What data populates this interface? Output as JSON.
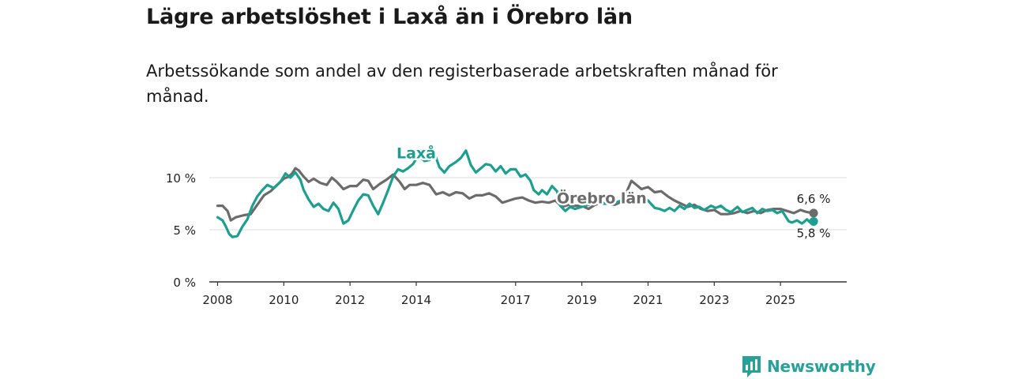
{
  "header": {
    "title": "Lägre arbetslöshet i Laxå än i Örebro län",
    "subtitle": "Arbetssökande som andel av den registerbaserade arbetskraften månad för månad."
  },
  "brand": {
    "name": "Newsworthy",
    "color": "#2aa198"
  },
  "chart_data": {
    "type": "line",
    "title": "Lägre arbetslöshet i Laxå än i Örebro län",
    "subtitle": "Arbetssökande som andel av den registerbaserade arbetskraften månad för månad.",
    "xlabel": "",
    "ylabel": "",
    "unit": "%",
    "xlim": [
      2007.75,
      2027.0
    ],
    "ylim": [
      0,
      10
    ],
    "y_ticks": [
      {
        "value": 0,
        "label": "0 %"
      },
      {
        "value": 5,
        "label": "5 %"
      },
      {
        "value": 10,
        "label": "10 %"
      }
    ],
    "x_ticks": [
      {
        "value": 2008,
        "label": "2008"
      },
      {
        "value": 2010,
        "label": "2010"
      },
      {
        "value": 2012,
        "label": "2012"
      },
      {
        "value": 2014,
        "label": "2014"
      },
      {
        "value": 2017,
        "label": "2017"
      },
      {
        "value": 2019,
        "label": "2019"
      },
      {
        "value": 2021,
        "label": "2021"
      },
      {
        "value": 2023,
        "label": "2023"
      },
      {
        "value": 2025,
        "label": "2025"
      }
    ],
    "series": [
      {
        "name": "Örebro län",
        "color": "#6b6b6b",
        "end_label": "6,6 %",
        "points": [
          [
            2008.0,
            7.3
          ],
          [
            2008.15,
            7.3
          ],
          [
            2008.3,
            6.8
          ],
          [
            2008.4,
            5.9
          ],
          [
            2008.55,
            6.2
          ],
          [
            2008.8,
            6.4
          ],
          [
            2009.0,
            6.5
          ],
          [
            2009.2,
            7.4
          ],
          [
            2009.4,
            8.3
          ],
          [
            2009.6,
            8.7
          ],
          [
            2009.8,
            9.3
          ],
          [
            2010.0,
            9.9
          ],
          [
            2010.15,
            10.1
          ],
          [
            2010.25,
            10.4
          ],
          [
            2010.35,
            10.9
          ],
          [
            2010.45,
            10.7
          ],
          [
            2010.6,
            10.1
          ],
          [
            2010.75,
            9.6
          ],
          [
            2010.9,
            9.9
          ],
          [
            2011.1,
            9.5
          ],
          [
            2011.3,
            9.3
          ],
          [
            2011.45,
            10.0
          ],
          [
            2011.6,
            9.6
          ],
          [
            2011.8,
            8.9
          ],
          [
            2012.0,
            9.2
          ],
          [
            2012.2,
            9.2
          ],
          [
            2012.4,
            9.8
          ],
          [
            2012.55,
            9.7
          ],
          [
            2012.7,
            8.9
          ],
          [
            2012.9,
            9.4
          ],
          [
            2013.1,
            9.8
          ],
          [
            2013.3,
            10.3
          ],
          [
            2013.5,
            9.6
          ],
          [
            2013.65,
            8.9
          ],
          [
            2013.8,
            9.3
          ],
          [
            2014.0,
            9.3
          ],
          [
            2014.2,
            9.5
          ],
          [
            2014.4,
            9.3
          ],
          [
            2014.6,
            8.4
          ],
          [
            2014.8,
            8.6
          ],
          [
            2015.0,
            8.3
          ],
          [
            2015.2,
            8.6
          ],
          [
            2015.4,
            8.5
          ],
          [
            2015.6,
            8.0
          ],
          [
            2015.8,
            8.3
          ],
          [
            2016.0,
            8.3
          ],
          [
            2016.2,
            8.5
          ],
          [
            2016.4,
            8.2
          ],
          [
            2016.6,
            7.6
          ],
          [
            2016.8,
            7.8
          ],
          [
            2017.0,
            8.0
          ],
          [
            2017.2,
            8.1
          ],
          [
            2017.4,
            7.8
          ],
          [
            2017.6,
            7.6
          ],
          [
            2017.8,
            7.7
          ],
          [
            2018.0,
            7.6
          ],
          [
            2018.2,
            7.8
          ],
          [
            2018.4,
            7.2
          ],
          [
            2018.6,
            7.4
          ],
          [
            2018.8,
            7.3
          ],
          [
            2019.0,
            7.3
          ],
          [
            2019.2,
            7.0
          ],
          [
            2019.4,
            7.4
          ],
          [
            2019.6,
            7.6
          ],
          [
            2019.8,
            7.5
          ],
          [
            2020.0,
            7.4
          ],
          [
            2020.2,
            7.7
          ],
          [
            2020.35,
            8.6
          ],
          [
            2020.5,
            9.7
          ],
          [
            2020.65,
            9.3
          ],
          [
            2020.8,
            8.9
          ],
          [
            2021.0,
            9.1
          ],
          [
            2021.2,
            8.6
          ],
          [
            2021.4,
            8.7
          ],
          [
            2021.6,
            8.2
          ],
          [
            2021.8,
            7.8
          ],
          [
            2022.0,
            7.5
          ],
          [
            2022.2,
            7.2
          ],
          [
            2022.4,
            7.4
          ],
          [
            2022.6,
            7.0
          ],
          [
            2022.8,
            6.8
          ],
          [
            2023.0,
            6.9
          ],
          [
            2023.2,
            6.5
          ],
          [
            2023.4,
            6.5
          ],
          [
            2023.6,
            6.6
          ],
          [
            2023.8,
            6.8
          ],
          [
            2024.0,
            6.6
          ],
          [
            2024.2,
            6.8
          ],
          [
            2024.4,
            6.6
          ],
          [
            2024.6,
            6.9
          ],
          [
            2024.8,
            7.0
          ],
          [
            2025.0,
            7.0
          ],
          [
            2025.2,
            6.8
          ],
          [
            2025.4,
            6.6
          ],
          [
            2025.6,
            6.9
          ],
          [
            2025.8,
            6.7
          ],
          [
            2026.0,
            6.6
          ]
        ]
      },
      {
        "name": "Laxå",
        "color": "#1e9e8f",
        "end_label": "5,8 %",
        "points": [
          [
            2008.0,
            6.2
          ],
          [
            2008.15,
            5.9
          ],
          [
            2008.25,
            5.3
          ],
          [
            2008.35,
            4.6
          ],
          [
            2008.45,
            4.3
          ],
          [
            2008.6,
            4.4
          ],
          [
            2008.75,
            5.3
          ],
          [
            2008.9,
            6.0
          ],
          [
            2009.05,
            7.3
          ],
          [
            2009.2,
            8.2
          ],
          [
            2009.35,
            8.8
          ],
          [
            2009.5,
            9.3
          ],
          [
            2009.7,
            9.0
          ],
          [
            2009.9,
            9.6
          ],
          [
            2010.05,
            10.4
          ],
          [
            2010.2,
            10.0
          ],
          [
            2010.35,
            10.5
          ],
          [
            2010.5,
            9.8
          ],
          [
            2010.6,
            8.8
          ],
          [
            2010.75,
            7.9
          ],
          [
            2010.9,
            7.2
          ],
          [
            2011.05,
            7.5
          ],
          [
            2011.2,
            7.0
          ],
          [
            2011.35,
            6.8
          ],
          [
            2011.5,
            7.6
          ],
          [
            2011.65,
            7.0
          ],
          [
            2011.8,
            5.6
          ],
          [
            2011.95,
            5.9
          ],
          [
            2012.1,
            6.9
          ],
          [
            2012.25,
            7.8
          ],
          [
            2012.4,
            8.4
          ],
          [
            2012.55,
            8.3
          ],
          [
            2012.7,
            7.3
          ],
          [
            2012.85,
            6.5
          ],
          [
            2013.0,
            7.6
          ],
          [
            2013.15,
            8.8
          ],
          [
            2013.3,
            10.1
          ],
          [
            2013.45,
            10.8
          ],
          [
            2013.6,
            10.6
          ],
          [
            2013.75,
            10.9
          ],
          [
            2013.9,
            11.3
          ],
          [
            2014.0,
            11.8
          ],
          [
            2014.1,
            12.0
          ],
          [
            2014.25,
            11.6
          ],
          [
            2014.4,
            11.7
          ],
          [
            2014.55,
            12.3
          ],
          [
            2014.7,
            11.0
          ],
          [
            2014.85,
            10.5
          ],
          [
            2015.0,
            11.1
          ],
          [
            2015.2,
            11.5
          ],
          [
            2015.35,
            11.9
          ],
          [
            2015.5,
            12.6
          ],
          [
            2015.65,
            11.2
          ],
          [
            2015.8,
            10.5
          ],
          [
            2015.95,
            10.9
          ],
          [
            2016.1,
            11.3
          ],
          [
            2016.25,
            11.2
          ],
          [
            2016.4,
            10.6
          ],
          [
            2016.55,
            11.1
          ],
          [
            2016.7,
            10.4
          ],
          [
            2016.85,
            10.8
          ],
          [
            2017.0,
            10.8
          ],
          [
            2017.15,
            10.1
          ],
          [
            2017.3,
            10.3
          ],
          [
            2017.45,
            9.7
          ],
          [
            2017.55,
            8.8
          ],
          [
            2017.7,
            8.4
          ],
          [
            2017.8,
            8.8
          ],
          [
            2017.95,
            8.4
          ],
          [
            2018.1,
            9.2
          ],
          [
            2018.25,
            8.7
          ],
          [
            2018.35,
            7.3
          ],
          [
            2018.5,
            6.8
          ],
          [
            2018.65,
            7.2
          ],
          [
            2018.8,
            7.0
          ],
          [
            2019.0,
            7.2
          ],
          [
            2019.2,
            7.4
          ],
          [
            2019.4,
            7.6
          ],
          [
            2019.6,
            7.5
          ],
          [
            2019.8,
            7.5
          ],
          [
            2020.0,
            7.6
          ],
          [
            2020.2,
            7.8
          ],
          [
            2020.4,
            7.9
          ],
          [
            2020.6,
            8.0
          ],
          [
            2020.8,
            7.9
          ],
          [
            2021.0,
            7.8
          ],
          [
            2021.2,
            7.1
          ],
          [
            2021.35,
            7.0
          ],
          [
            2021.5,
            6.8
          ],
          [
            2021.65,
            7.1
          ],
          [
            2021.8,
            6.8
          ],
          [
            2021.95,
            7.3
          ],
          [
            2022.1,
            7.0
          ],
          [
            2022.25,
            7.5
          ],
          [
            2022.4,
            7.1
          ],
          [
            2022.55,
            7.2
          ],
          [
            2022.7,
            6.9
          ],
          [
            2022.9,
            7.3
          ],
          [
            2023.05,
            7.1
          ],
          [
            2023.2,
            7.3
          ],
          [
            2023.35,
            6.9
          ],
          [
            2023.5,
            6.7
          ],
          [
            2023.7,
            7.2
          ],
          [
            2023.85,
            6.7
          ],
          [
            2024.0,
            6.9
          ],
          [
            2024.15,
            7.1
          ],
          [
            2024.3,
            6.6
          ],
          [
            2024.45,
            7.0
          ],
          [
            2024.6,
            6.8
          ],
          [
            2024.75,
            6.9
          ],
          [
            2024.9,
            6.6
          ],
          [
            2025.05,
            6.8
          ],
          [
            2025.15,
            6.3
          ],
          [
            2025.25,
            5.8
          ],
          [
            2025.35,
            5.7
          ],
          [
            2025.5,
            5.9
          ],
          [
            2025.65,
            5.6
          ],
          [
            2025.8,
            6.0
          ],
          [
            2025.9,
            5.7
          ],
          [
            2026.0,
            5.8
          ]
        ]
      }
    ],
    "annotations": [
      {
        "text": "Laxå",
        "x": 2014.0,
        "y": 12.3,
        "series": "Laxå"
      },
      {
        "text": "Örebro län",
        "x": 2019.6,
        "y": 8.0,
        "series": "Örebro län"
      }
    ]
  }
}
